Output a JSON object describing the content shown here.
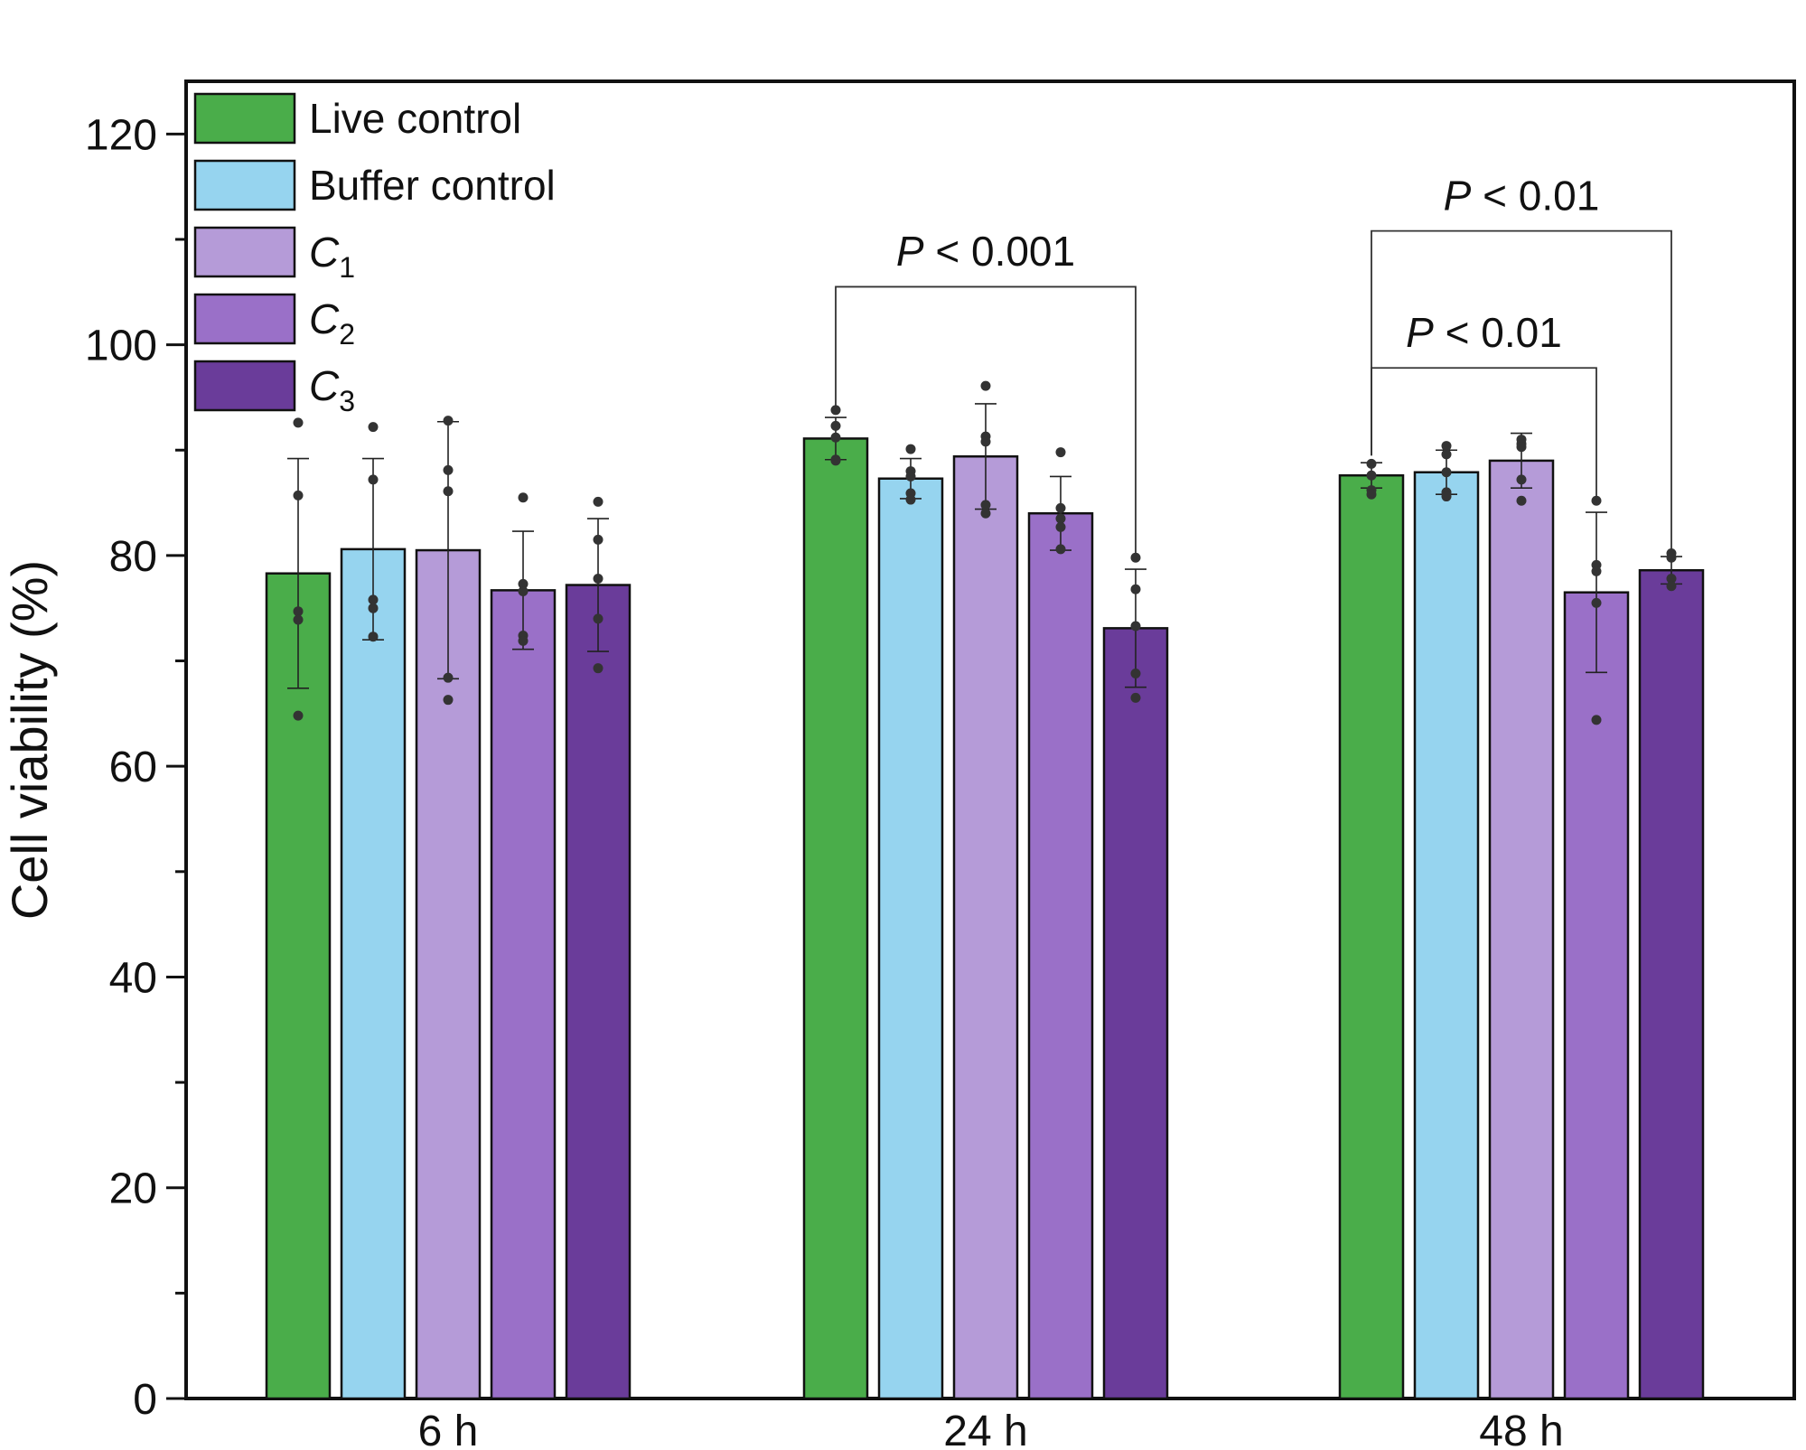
{
  "chart_data": {
    "type": "bar",
    "title": "",
    "xlabel": "",
    "ylabel": "Cell viability (%)",
    "ylim": [
      0,
      125
    ],
    "yticks": [
      0,
      20,
      40,
      60,
      80,
      100,
      120
    ],
    "ytick_labels": [
      "0",
      "20",
      "40",
      "60",
      "80",
      "100",
      "120"
    ],
    "categories": [
      "6 h",
      "24 h",
      "48 h"
    ],
    "legend_position": "top-left",
    "series": [
      {
        "name": "Live control",
        "subscript": "",
        "color": "#4aad4a",
        "values": [
          78.3,
          91.1,
          87.6
        ],
        "errors": [
          10.9,
          2.0,
          1.2
        ],
        "points": [
          [
            92.6,
            85.7,
            74.7,
            73.9,
            64.8
          ],
          [
            93.8,
            92.3,
            91.2,
            89.1,
            89.0
          ],
          [
            88.7,
            87.6,
            86.2,
            85.8
          ]
        ]
      },
      {
        "name": "Buffer control",
        "subscript": "",
        "color": "#96d4ef",
        "values": [
          80.6,
          87.3,
          87.9
        ],
        "errors": [
          8.6,
          1.9,
          2.1
        ],
        "points": [
          [
            92.2,
            87.2,
            75.8,
            75.0,
            72.3
          ],
          [
            90.1,
            88.0,
            87.5,
            85.9,
            85.3
          ],
          [
            90.4,
            89.6,
            87.9,
            86.0,
            85.6
          ]
        ]
      },
      {
        "name": "C",
        "subscript": "1",
        "color": "#b59bd8",
        "values": [
          80.5,
          89.4,
          89.0
        ],
        "errors": [
          12.2,
          5.0,
          2.6
        ],
        "points": [
          [
            92.8,
            88.1,
            86.1,
            68.4,
            66.3
          ],
          [
            96.1,
            91.3,
            90.8,
            84.8,
            84.0
          ],
          [
            91.0,
            90.6,
            90.3,
            87.2,
            85.2
          ]
        ]
      },
      {
        "name": "C",
        "subscript": "2",
        "color": "#9a70c8",
        "values": [
          76.7,
          84.0,
          76.5
        ],
        "errors": [
          5.6,
          3.5,
          7.6
        ],
        "points": [
          [
            85.5,
            77.3,
            76.6,
            72.4,
            71.9
          ],
          [
            89.8,
            84.5,
            83.5,
            82.7,
            80.6
          ],
          [
            85.2,
            79.1,
            78.5,
            75.5,
            64.4
          ]
        ]
      },
      {
        "name": "C",
        "subscript": "3",
        "color": "#6a3c9a",
        "values": [
          77.2,
          73.1,
          78.6
        ],
        "errors": [
          6.3,
          5.6,
          1.3
        ],
        "points": [
          [
            85.1,
            81.5,
            77.8,
            74.0,
            69.3
          ],
          [
            79.8,
            76.8,
            73.3,
            68.8,
            66.5
          ],
          [
            80.2,
            79.8,
            77.8,
            77.1
          ]
        ]
      }
    ],
    "annotations": [
      {
        "label_italic": "P",
        "label_rest": " < 0.001",
        "category": 1,
        "from_series": 0,
        "to_series": 4,
        "bracket_y": 105.5,
        "text_y": 107.5
      },
      {
        "label_italic": "P",
        "label_rest": " < 0.01",
        "category": 2,
        "from_series": 0,
        "to_series": 4,
        "bracket_y": 110.8,
        "text_y": 112.8
      },
      {
        "label_italic": "P",
        "label_rest": " < 0.01",
        "category": 2,
        "from_series": 0,
        "to_series": 3,
        "bracket_y": 97.8,
        "text_y": 99.8
      }
    ]
  }
}
